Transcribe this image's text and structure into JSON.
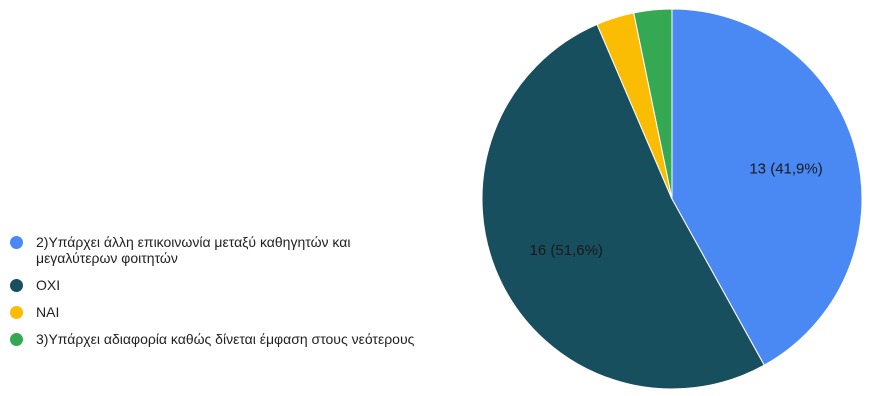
{
  "chart_data": {
    "type": "pie",
    "title": "",
    "legend_position": "left",
    "slices": [
      {
        "label": "2)Υπάρχει άλλη επικοινωνία μεταξύ καθηγητών και μεγαλύτερων φοιτητών",
        "value": 13,
        "value_label": "13 (41,9%)",
        "color": "#4a89f3"
      },
      {
        "label": "ΟΧΙ",
        "value": 16,
        "value_label": "16 (51,6%)",
        "color": "#174f5e"
      },
      {
        "label": "ΝΑΙ",
        "value": 1,
        "value_label": "",
        "color": "#fbbc04"
      },
      {
        "label": "3)Υπάρχει αδιαφορία καθώς δίνεται έμφαση στους νεότερους",
        "value": 1,
        "value_label": "",
        "color": "#34a853"
      }
    ]
  }
}
